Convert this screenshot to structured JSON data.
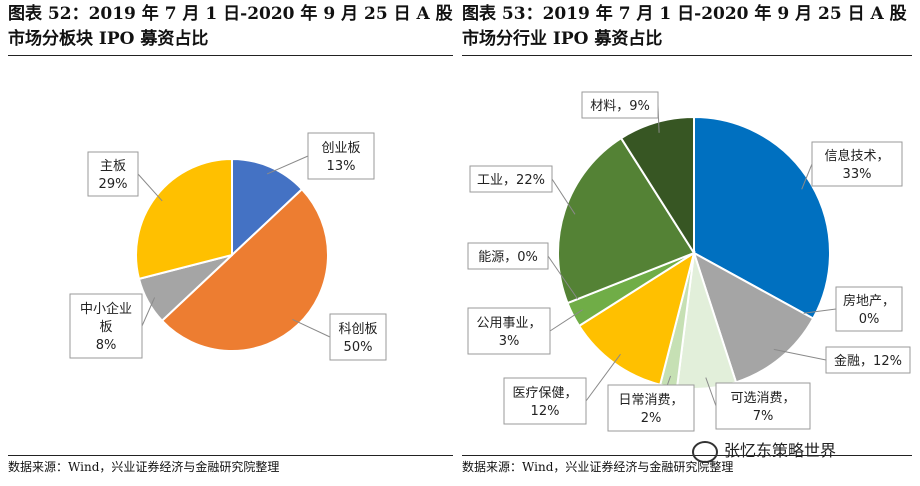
{
  "left_panel": {
    "title": "图表 52：2019 年 7 月 1 日-2020 年 9 月 25 日 A 股市场分板块 IPO 募资占比",
    "source": "数据来源：Wind，兴业证券经济与金融研究院整理"
  },
  "right_panel": {
    "title": "图表 53：2019 年 7 月 1 日-2020 年 9 月 25 日 A 股市场分行业 IPO 募资占比",
    "source": "数据来源：Wind，兴业证券经济与金融研究院整理"
  },
  "watermark": "张忆东策略世界",
  "chart_data": [
    {
      "type": "pie",
      "title": "",
      "slices": [
        {
          "name": "创业板",
          "value": 13,
          "label_lines": [
            "创业板",
            "13%"
          ],
          "color": "#4472C4"
        },
        {
          "name": "科创板",
          "value": 50,
          "label_lines": [
            "科创板",
            "50%"
          ],
          "color": "#ED7D31"
        },
        {
          "name": "中小企业板",
          "value": 8,
          "label_lines": [
            "中小企业",
            "板",
            "8%"
          ],
          "color": "#A5A5A5"
        },
        {
          "name": "主板",
          "value": 29,
          "label_lines": [
            "主板",
            "29%"
          ],
          "color": "#FFC000"
        }
      ]
    },
    {
      "type": "pie",
      "title": "",
      "slices": [
        {
          "name": "信息技术",
          "value": 33,
          "label_lines": [
            "信息技术，",
            "33%"
          ],
          "color": "#0070C0"
        },
        {
          "name": "房地产",
          "value": 0,
          "label_lines": [
            "房地产，",
            "0%"
          ],
          "color": "#4472C4"
        },
        {
          "name": "金融",
          "value": 12,
          "label_lines": [
            "金融，12%"
          ],
          "color": "#A5A5A5"
        },
        {
          "name": "可选消费",
          "value": 7,
          "label_lines": [
            "可选消费，",
            "7%"
          ],
          "color": "#E2EFDA"
        },
        {
          "name": "日常消费",
          "value": 2,
          "label_lines": [
            "日常消费，",
            "2%"
          ],
          "color": "#C6E0B4"
        },
        {
          "name": "医疗保健",
          "value": 12,
          "label_lines": [
            "医疗保健，",
            "12%"
          ],
          "color": "#FFC000"
        },
        {
          "name": "公用事业",
          "value": 3,
          "label_lines": [
            "公用事业，",
            "3%"
          ],
          "color": "#70AD47"
        },
        {
          "name": "能源",
          "value": 0,
          "label_lines": [
            "能源，0%"
          ],
          "color": "#548235"
        },
        {
          "name": "工业",
          "value": 22,
          "label_lines": [
            "工业，22%"
          ],
          "color": "#548235"
        },
        {
          "name": "材料",
          "value": 9,
          "label_lines": [
            "材料，9%"
          ],
          "color": "#375623"
        }
      ]
    }
  ]
}
